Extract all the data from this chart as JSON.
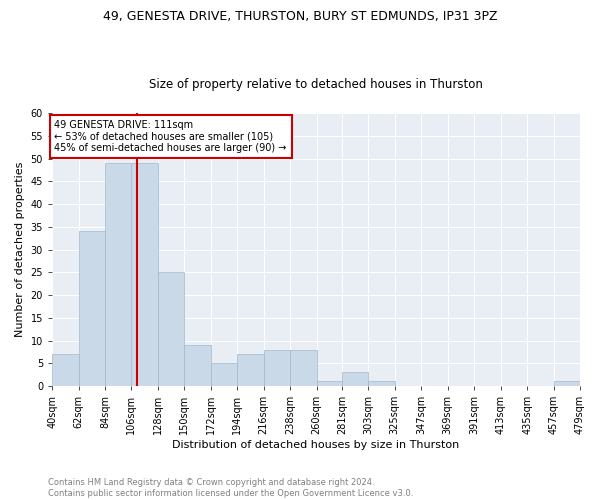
{
  "title1": "49, GENESTA DRIVE, THURSTON, BURY ST EDMUNDS, IP31 3PZ",
  "title2": "Size of property relative to detached houses in Thurston",
  "xlabel": "Distribution of detached houses by size in Thurston",
  "ylabel": "Number of detached properties",
  "bar_color": "#c9d9e8",
  "bar_edge_color": "#a0b8cc",
  "vline_x": 111,
  "vline_color": "#cc0000",
  "annotation_text": "49 GENESTA DRIVE: 111sqm\n← 53% of detached houses are smaller (105)\n45% of semi-detached houses are larger (90) →",
  "annotation_box_color": "#cc0000",
  "bins": [
    40,
    62,
    84,
    106,
    128,
    150,
    172,
    194,
    216,
    238,
    260,
    281,
    303,
    325,
    347,
    369,
    391,
    413,
    435,
    457,
    479
  ],
  "counts": [
    7,
    34,
    49,
    49,
    25,
    9,
    5,
    7,
    8,
    8,
    1,
    3,
    1,
    0,
    0,
    0,
    0,
    0,
    0,
    1
  ],
  "tick_labels": [
    "40sqm",
    "62sqm",
    "84sqm",
    "106sqm",
    "128sqm",
    "150sqm",
    "172sqm",
    "194sqm",
    "216sqm",
    "238sqm",
    "260sqm",
    "281sqm",
    "303sqm",
    "325sqm",
    "347sqm",
    "369sqm",
    "391sqm",
    "413sqm",
    "435sqm",
    "457sqm",
    "479sqm"
  ],
  "ylim": [
    0,
    60
  ],
  "yticks": [
    0,
    5,
    10,
    15,
    20,
    25,
    30,
    35,
    40,
    45,
    50,
    55,
    60
  ],
  "background_color": "#e8eef4",
  "footer_text": "Contains HM Land Registry data © Crown copyright and database right 2024.\nContains public sector information licensed under the Open Government Licence v3.0.",
  "footer_color": "#808080",
  "title1_fontsize": 9,
  "title2_fontsize": 8.5,
  "xlabel_fontsize": 8,
  "ylabel_fontsize": 8,
  "tick_fontsize": 7,
  "footer_fontsize": 6,
  "annot_fontsize": 7
}
